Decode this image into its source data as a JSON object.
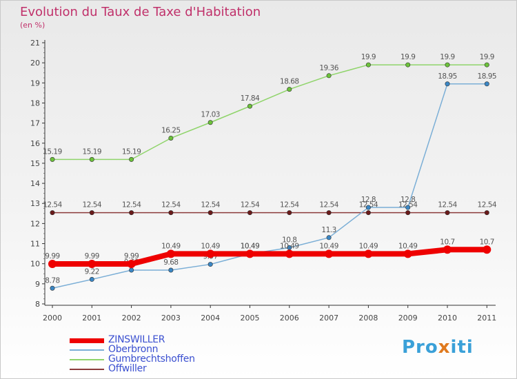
{
  "title": "Evolution du Taux de Taxe d'Habitation",
  "subtitle": "(en %)",
  "logo": {
    "part1": "Pro",
    "part2": "x",
    "part3": "iti",
    "accent_colors": [
      "#3aa0d8",
      "#e07a1f"
    ]
  },
  "chart_data": {
    "type": "line",
    "title": "Evolution du Taux de Taxe d'Habitation",
    "subtitle": "(en %)",
    "xlabel": "",
    "ylabel": "",
    "x": [
      "2000",
      "2001",
      "2002",
      "2003",
      "2004",
      "2005",
      "2006",
      "2007",
      "2008",
      "2009",
      "2010",
      "2011"
    ],
    "ylim": [
      8,
      21
    ],
    "yticks": [
      "8",
      "9",
      "10",
      "11",
      "12",
      "13",
      "14",
      "15",
      "16",
      "17",
      "18",
      "19",
      "20",
      "21"
    ],
    "grid": false,
    "legend_position": "bottom-left",
    "series": [
      {
        "name": "Gumbrechtshoffen",
        "color": "#8fd46a",
        "marker": "#6cc23a",
        "width": 1.5,
        "values": [
          15.19,
          15.19,
          15.19,
          16.25,
          17.03,
          17.84,
          18.68,
          19.36,
          19.9,
          19.9,
          19.9,
          19.9
        ],
        "labels": [
          "15.19",
          "15.19",
          "15.19",
          "16.25",
          "17.03",
          "17.84",
          "18.68",
          "19.36",
          "19.9",
          "19.9",
          "19.9",
          "19.9"
        ]
      },
      {
        "name": "Offwiller",
        "color": "#8b3a3a",
        "marker": "#6a1a1a",
        "width": 1.5,
        "values": [
          12.54,
          12.54,
          12.54,
          12.54,
          12.54,
          12.54,
          12.54,
          12.54,
          12.54,
          12.54,
          12.54,
          12.54
        ],
        "labels": [
          "12.54",
          "12.54",
          "12.54",
          "12.54",
          "12.54",
          "12.54",
          "12.54",
          "12.54",
          "12.54",
          "12.54",
          "12.54",
          "12.54"
        ]
      },
      {
        "name": "Oberbronn",
        "color": "#7aaed6",
        "marker": "#3a86c4",
        "width": 1.5,
        "values": [
          8.78,
          9.22,
          9.68,
          9.68,
          9.97,
          10.49,
          10.8,
          11.3,
          12.8,
          12.8,
          18.95,
          18.95
        ],
        "labels": [
          "8.78",
          "9.22",
          "9.68",
          "9.68",
          "9.97",
          "10.49",
          "10.8",
          "11.3",
          "12.8",
          "12.8",
          "18.95",
          "18.95"
        ]
      },
      {
        "name": "ZINSWILLER",
        "color": "#ee0000",
        "marker": "#ee0000",
        "width": 8,
        "values": [
          9.99,
          9.99,
          9.99,
          10.49,
          10.49,
          10.49,
          10.49,
          10.49,
          10.49,
          10.49,
          10.7,
          10.7
        ],
        "labels": [
          "9.99",
          "9.99",
          "9.99",
          "10.49",
          "10.49",
          "10.49",
          "10.49",
          "10.49",
          "10.49",
          "10.49",
          "10.7",
          "10.7"
        ]
      }
    ],
    "legend": [
      "ZINSWILLER",
      "Oberbronn",
      "Gumbrechtshoffen",
      "Offwiller"
    ]
  }
}
